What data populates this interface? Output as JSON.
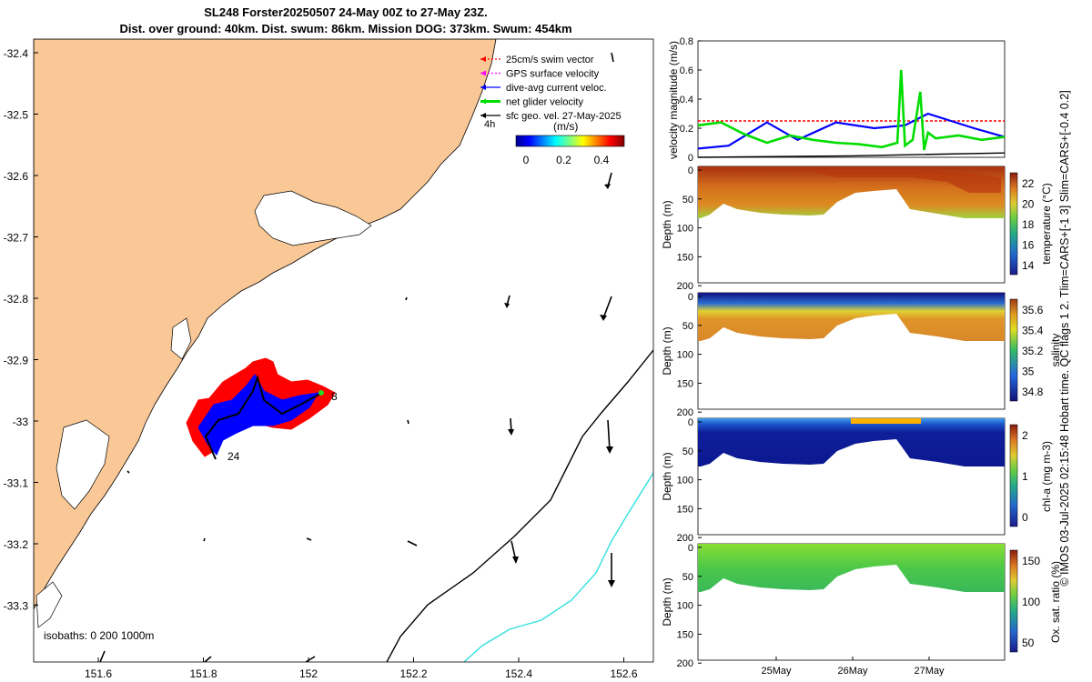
{
  "title": {
    "line1": "SL248 Forster20250507 24-May 00Z to 27-May 23Z.",
    "line2": "Dist. over ground: 40km. Dist. swum: 86km. Mission DOG: 373km. Swum: 454km"
  },
  "side_text": "© IMOS 03-Jul-2025 02:15:48 Hobart time. QC flags 1  2. Tlim=CARS+[-1 3] Slim=CARS+[-0.4 0.2]",
  "map": {
    "xticks": [
      "151.6",
      "151.8",
      "152",
      "152.2",
      "152.4",
      "152.6"
    ],
    "yticks": [
      "-32.4",
      "-32.5",
      "-32.6",
      "-32.7",
      "-32.8",
      "-32.9",
      "-33",
      "-33.1",
      "-33.2",
      "-33.3"
    ],
    "legend": [
      {
        "label": "25cm/s swim vector",
        "color": "#ff0000"
      },
      {
        "label": "GPS surface velocity",
        "color": "#ff00ff"
      },
      {
        "label": "dive-avg current veloc.",
        "color": "#0000ff"
      },
      {
        "label": "net glider velocity",
        "color": "#00dd00"
      },
      {
        "label": "sfc geo. vel. 27-May-2025",
        "color": "#000000"
      }
    ],
    "hour_label": "4h",
    "colorbar_title": "(m/s)",
    "colorbar_ticks": [
      "0",
      "0.2",
      "0.4"
    ],
    "isobaths_label": "isobaths: 0   200  1000m",
    "track_labels": {
      "start": "24",
      "end": "8"
    },
    "colors": {
      "land": "#fac896",
      "track_red": "#ff0000",
      "track_blue": "#0000ff",
      "isobath_200": "#000000",
      "isobath_1000": "#33e0e0"
    }
  },
  "chart_data": [
    {
      "type": "line",
      "ylabel": "velocity magnitude (m/s)",
      "ylim": [
        0,
        0.8
      ],
      "yticks": [
        "0",
        "0.2",
        "0.4",
        "0.6",
        "0.8"
      ],
      "x_days": [
        24,
        28
      ],
      "series": [
        {
          "name": "25cm/s swim vector",
          "color": "#ff0000",
          "x": [
            24,
            28
          ],
          "values": [
            0.25,
            0.25
          ]
        },
        {
          "name": "dive-avg current veloc.",
          "color": "#0000ff",
          "x": [
            24,
            24.4,
            24.9,
            25.3,
            25.8,
            26.3,
            26.7,
            27.0,
            27.3,
            27.6,
            28
          ],
          "values": [
            0.06,
            0.08,
            0.24,
            0.12,
            0.24,
            0.2,
            0.22,
            0.3,
            0.25,
            0.2,
            0.14
          ]
        },
        {
          "name": "net glider velocity",
          "color": "#00dd00",
          "x": [
            24,
            24.3,
            24.6,
            24.9,
            25.2,
            25.5,
            25.8,
            26.1,
            26.4,
            26.6,
            26.65,
            26.7,
            26.8,
            26.9,
            26.95,
            27.0,
            27.1,
            27.4,
            27.7,
            28
          ],
          "values": [
            0.22,
            0.24,
            0.16,
            0.1,
            0.15,
            0.12,
            0.1,
            0.09,
            0.07,
            0.1,
            0.6,
            0.08,
            0.12,
            0.45,
            0.05,
            0.17,
            0.13,
            0.15,
            0.12,
            0.14
          ]
        },
        {
          "name": "sfc geo. vel.",
          "color": "#000000",
          "x": [
            24,
            26,
            28
          ],
          "values": [
            0.0,
            0.01,
            0.03
          ]
        }
      ]
    },
    {
      "type": "heatmap",
      "ylabel": "Depth (m)",
      "yticks": [
        "0",
        "50",
        "100",
        "150",
        "200"
      ],
      "ylim": [
        0,
        200
      ],
      "colorbar_label": "temperature (°C)",
      "colorbar_ticks": [
        "14",
        "16",
        "18",
        "20",
        "22"
      ]
    },
    {
      "type": "heatmap",
      "ylabel": "Depth (m)",
      "yticks": [
        "0",
        "50",
        "100",
        "150",
        "200"
      ],
      "ylim": [
        0,
        200
      ],
      "colorbar_label": "salinity",
      "colorbar_ticks": [
        "34.8",
        "35",
        "35.2",
        "35.4",
        "35.6"
      ]
    },
    {
      "type": "heatmap",
      "ylabel": "Depth (m)",
      "yticks": [
        "0",
        "50",
        "100",
        "150",
        "200"
      ],
      "ylim": [
        0,
        200
      ],
      "colorbar_label": "chl-a (mg m-3)",
      "colorbar_ticks": [
        "0",
        "1",
        "2"
      ]
    },
    {
      "type": "heatmap",
      "ylabel": "Depth (m)",
      "yticks": [
        "0",
        "50",
        "100",
        "150",
        "200"
      ],
      "ylim": [
        0,
        200
      ],
      "colorbar_label": "Ox. sat. ratio (%)",
      "colorbar_ticks": [
        "50",
        "100",
        "150"
      ],
      "xticks": [
        "25May",
        "26May",
        "27May"
      ]
    }
  ]
}
